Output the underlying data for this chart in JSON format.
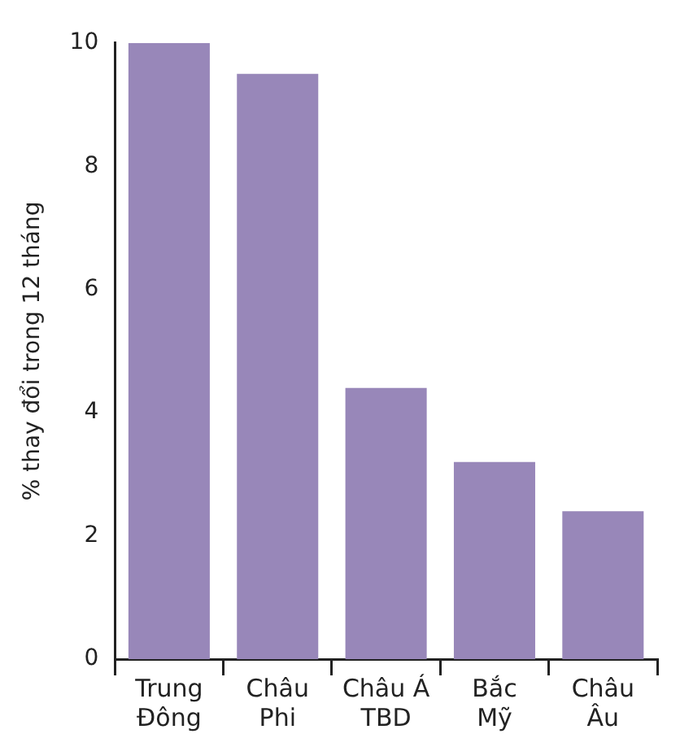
{
  "chart_data": {
    "type": "bar",
    "ylabel": "% thay đổi trong 12 tháng",
    "categories": [
      "Trung\nĐông",
      "Châu\nPhi",
      "Châu Á\nTBD",
      "Bắc\nMỹ",
      "Châu\nÂu"
    ],
    "values": [
      10,
      9.5,
      4.4,
      3.2,
      2.4
    ],
    "color": "#9887b9",
    "ylim": [
      0,
      10
    ],
    "yticks": [
      0,
      2,
      4,
      6,
      8,
      10
    ],
    "grid": false,
    "legend": false
  }
}
